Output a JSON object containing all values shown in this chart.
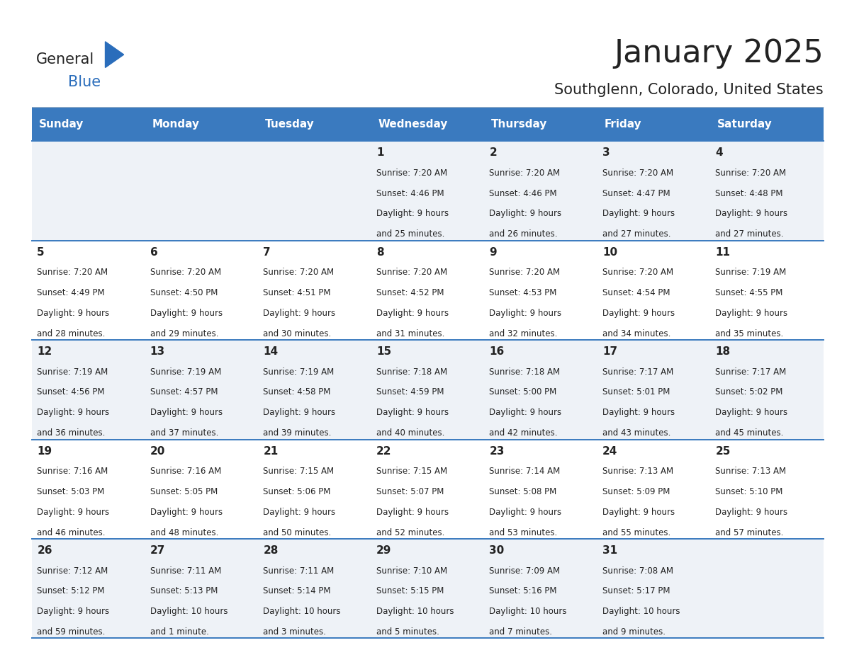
{
  "title": "January 2025",
  "subtitle": "Southglenn, Colorado, United States",
  "header_bg": "#3a7abf",
  "header_text": "#ffffff",
  "days_of_week": [
    "Sunday",
    "Monday",
    "Tuesday",
    "Wednesday",
    "Thursday",
    "Friday",
    "Saturday"
  ],
  "row_bg_even": "#eef2f7",
  "row_bg_odd": "#ffffff",
  "divider_color": "#3a7abf",
  "text_color": "#222222",
  "logo_general_color": "#222222",
  "logo_blue_color": "#2a6dbb",
  "logo_triangle_color": "#2a6dbb",
  "title_color": "#222222",
  "title_fontsize": 32,
  "subtitle_fontsize": 15,
  "header_fontsize": 11,
  "day_num_fontsize": 11,
  "info_fontsize": 8.5,
  "calendar": [
    [
      {
        "day": "",
        "sunrise": "",
        "sunset": "",
        "hours": "",
        "minutes": ""
      },
      {
        "day": "",
        "sunrise": "",
        "sunset": "",
        "hours": "",
        "minutes": ""
      },
      {
        "day": "",
        "sunrise": "",
        "sunset": "",
        "hours": "",
        "minutes": ""
      },
      {
        "day": "1",
        "sunrise": "7:20 AM",
        "sunset": "4:46 PM",
        "hours": "9",
        "minutes": "25"
      },
      {
        "day": "2",
        "sunrise": "7:20 AM",
        "sunset": "4:46 PM",
        "hours": "9",
        "minutes": "26"
      },
      {
        "day": "3",
        "sunrise": "7:20 AM",
        "sunset": "4:47 PM",
        "hours": "9",
        "minutes": "27"
      },
      {
        "day": "4",
        "sunrise": "7:20 AM",
        "sunset": "4:48 PM",
        "hours": "9",
        "minutes": "27"
      }
    ],
    [
      {
        "day": "5",
        "sunrise": "7:20 AM",
        "sunset": "4:49 PM",
        "hours": "9",
        "minutes": "28"
      },
      {
        "day": "6",
        "sunrise": "7:20 AM",
        "sunset": "4:50 PM",
        "hours": "9",
        "minutes": "29"
      },
      {
        "day": "7",
        "sunrise": "7:20 AM",
        "sunset": "4:51 PM",
        "hours": "9",
        "minutes": "30"
      },
      {
        "day": "8",
        "sunrise": "7:20 AM",
        "sunset": "4:52 PM",
        "hours": "9",
        "minutes": "31"
      },
      {
        "day": "9",
        "sunrise": "7:20 AM",
        "sunset": "4:53 PM",
        "hours": "9",
        "minutes": "32"
      },
      {
        "day": "10",
        "sunrise": "7:20 AM",
        "sunset": "4:54 PM",
        "hours": "9",
        "minutes": "34"
      },
      {
        "day": "11",
        "sunrise": "7:19 AM",
        "sunset": "4:55 PM",
        "hours": "9",
        "minutes": "35"
      }
    ],
    [
      {
        "day": "12",
        "sunrise": "7:19 AM",
        "sunset": "4:56 PM",
        "hours": "9",
        "minutes": "36"
      },
      {
        "day": "13",
        "sunrise": "7:19 AM",
        "sunset": "4:57 PM",
        "hours": "9",
        "minutes": "37"
      },
      {
        "day": "14",
        "sunrise": "7:19 AM",
        "sunset": "4:58 PM",
        "hours": "9",
        "minutes": "39"
      },
      {
        "day": "15",
        "sunrise": "7:18 AM",
        "sunset": "4:59 PM",
        "hours": "9",
        "minutes": "40"
      },
      {
        "day": "16",
        "sunrise": "7:18 AM",
        "sunset": "5:00 PM",
        "hours": "9",
        "minutes": "42"
      },
      {
        "day": "17",
        "sunrise": "7:17 AM",
        "sunset": "5:01 PM",
        "hours": "9",
        "minutes": "43"
      },
      {
        "day": "18",
        "sunrise": "7:17 AM",
        "sunset": "5:02 PM",
        "hours": "9",
        "minutes": "45"
      }
    ],
    [
      {
        "day": "19",
        "sunrise": "7:16 AM",
        "sunset": "5:03 PM",
        "hours": "9",
        "minutes": "46"
      },
      {
        "day": "20",
        "sunrise": "7:16 AM",
        "sunset": "5:05 PM",
        "hours": "9",
        "minutes": "48"
      },
      {
        "day": "21",
        "sunrise": "7:15 AM",
        "sunset": "5:06 PM",
        "hours": "9",
        "minutes": "50"
      },
      {
        "day": "22",
        "sunrise": "7:15 AM",
        "sunset": "5:07 PM",
        "hours": "9",
        "minutes": "52"
      },
      {
        "day": "23",
        "sunrise": "7:14 AM",
        "sunset": "5:08 PM",
        "hours": "9",
        "minutes": "53"
      },
      {
        "day": "24",
        "sunrise": "7:13 AM",
        "sunset": "5:09 PM",
        "hours": "9",
        "minutes": "55"
      },
      {
        "day": "25",
        "sunrise": "7:13 AM",
        "sunset": "5:10 PM",
        "hours": "9",
        "minutes": "57"
      }
    ],
    [
      {
        "day": "26",
        "sunrise": "7:12 AM",
        "sunset": "5:12 PM",
        "hours": "9",
        "minutes": "59"
      },
      {
        "day": "27",
        "sunrise": "7:11 AM",
        "sunset": "5:13 PM",
        "hours": "10",
        "minutes": "1"
      },
      {
        "day": "28",
        "sunrise": "7:11 AM",
        "sunset": "5:14 PM",
        "hours": "10",
        "minutes": "3"
      },
      {
        "day": "29",
        "sunrise": "7:10 AM",
        "sunset": "5:15 PM",
        "hours": "10",
        "minutes": "5"
      },
      {
        "day": "30",
        "sunrise": "7:09 AM",
        "sunset": "5:16 PM",
        "hours": "10",
        "minutes": "7"
      },
      {
        "day": "31",
        "sunrise": "7:08 AM",
        "sunset": "5:17 PM",
        "hours": "10",
        "minutes": "9"
      },
      {
        "day": "",
        "sunrise": "",
        "sunset": "",
        "hours": "",
        "minutes": ""
      }
    ]
  ]
}
